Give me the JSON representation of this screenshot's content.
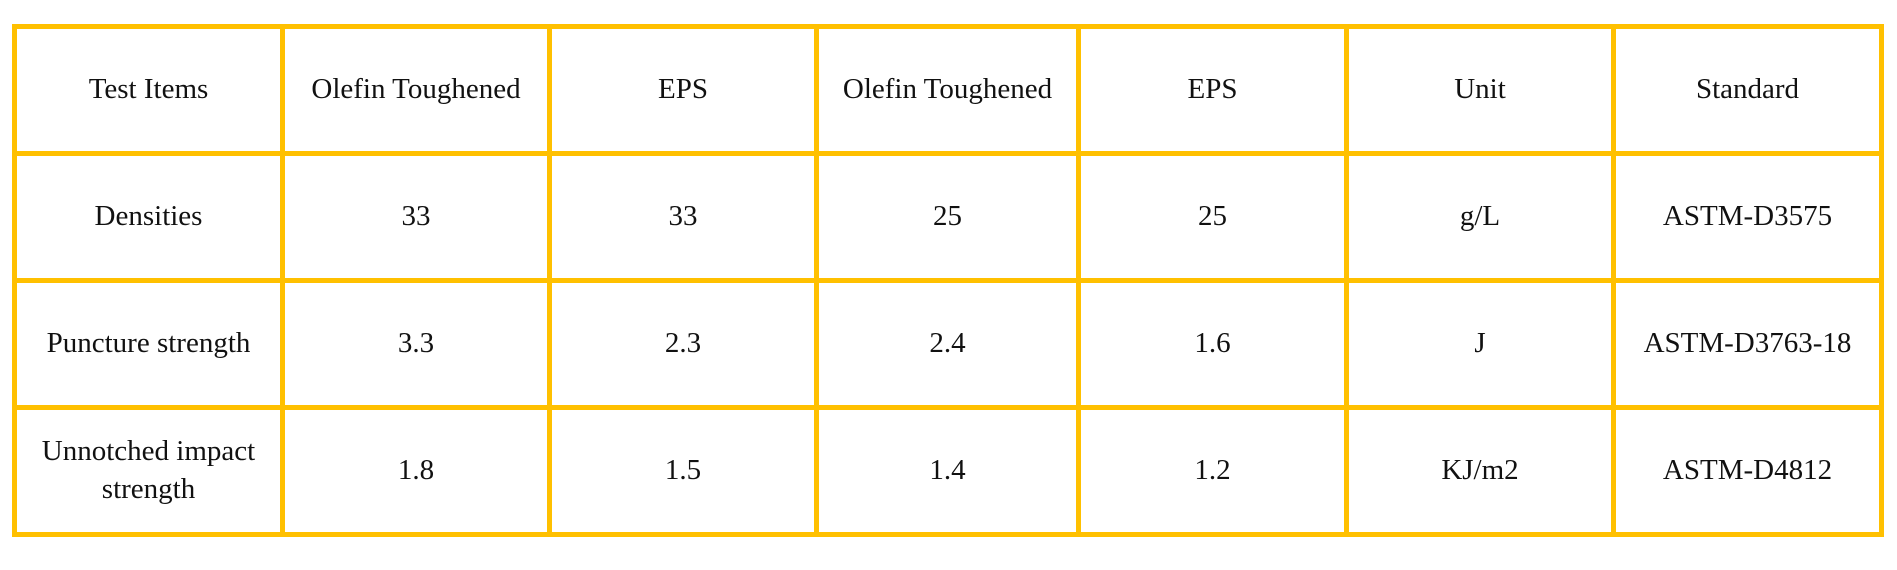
{
  "table": {
    "header": [
      "Test Items",
      "Olefin Toughened",
      "EPS",
      "Olefin Toughened",
      "EPS",
      "Unit",
      "Standard"
    ],
    "rows": [
      [
        "Densities",
        33,
        33,
        25,
        25,
        "g/L",
        "ASTM-D3575"
      ],
      [
        "Puncture strength",
        3.3,
        2.3,
        2.4,
        1.6,
        "J",
        "ASTM-D3763-18"
      ],
      [
        "Unnotched impact strength",
        1.8,
        1.5,
        1.4,
        1.2,
        "KJ/m2",
        "ASTM-D4812"
      ]
    ]
  }
}
